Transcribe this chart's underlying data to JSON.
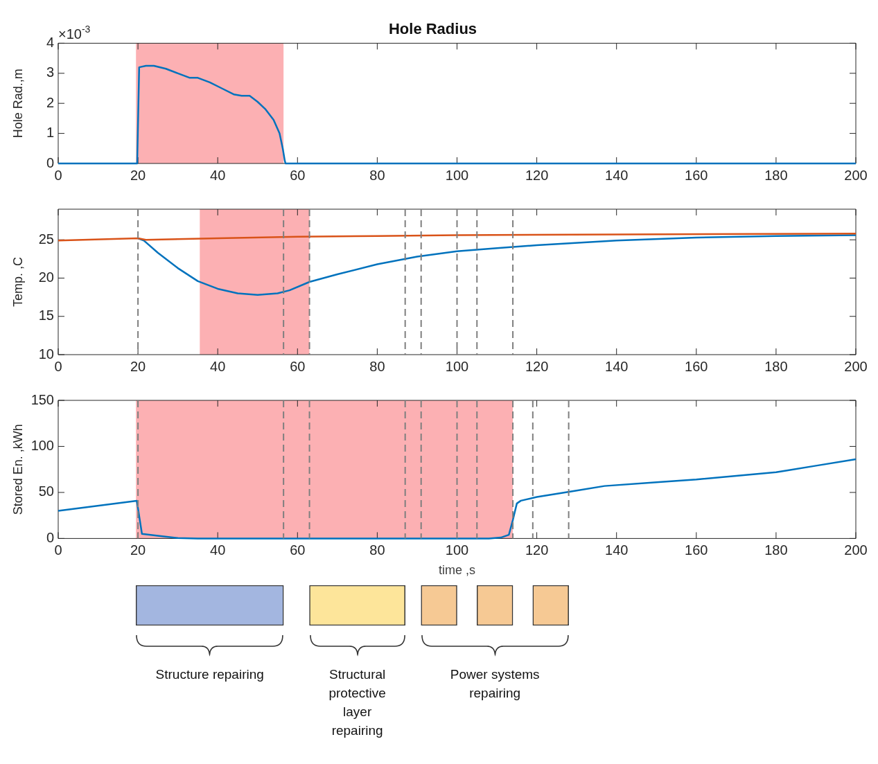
{
  "chart_data": [
    {
      "type": "line",
      "title": "Hole Radius",
      "ylabel": "Hole Rad.,m",
      "annotations": [
        "×10$^{-3}$"
      ],
      "xlim": [
        0,
        200
      ],
      "xticks": [
        0,
        20,
        40,
        60,
        80,
        100,
        120,
        140,
        160,
        180,
        200
      ],
      "ylim": [
        0,
        4
      ],
      "yticks": [
        0,
        1,
        2,
        3,
        4
      ],
      "series": [
        {
          "color": "#0072bd",
          "x": [
            0,
            19.8,
            20.3,
            22,
            24,
            27,
            30,
            33,
            35,
            38,
            41,
            44,
            46,
            48,
            50,
            52,
            54,
            55.5,
            56.3,
            56.8,
            57,
            60,
            100,
            150,
            200
          ],
          "values": [
            0,
            0,
            3.2,
            3.25,
            3.25,
            3.15,
            3.0,
            2.85,
            2.85,
            2.7,
            2.5,
            2.3,
            2.25,
            2.25,
            2.05,
            1.8,
            1.45,
            1.0,
            0.5,
            0.1,
            0,
            0,
            0,
            0,
            0
          ]
        }
      ],
      "bands": [
        {
          "axis": "x",
          "from": 19.5,
          "to": 56.5,
          "color": "#fcb0b3"
        }
      ]
    },
    {
      "type": "line",
      "ylabel": "Temp. ,C",
      "xlim": [
        0,
        200
      ],
      "xticks": [
        0,
        20,
        40,
        60,
        80,
        100,
        120,
        140,
        160,
        180,
        200
      ],
      "ylim": [
        10,
        29
      ],
      "yticks": [
        10,
        15,
        20,
        25
      ],
      "series": [
        {
          "color": "#d95319",
          "x": [
            0,
            20,
            22,
            40,
            60,
            80,
            100,
            140,
            200
          ],
          "values": [
            24.9,
            25.2,
            25.0,
            25.2,
            25.4,
            25.5,
            25.6,
            25.7,
            25.8
          ]
        },
        {
          "color": "#0072bd",
          "x": [
            20,
            21.5,
            25,
            30,
            35,
            40,
            45,
            50,
            55,
            58,
            63,
            70,
            80,
            90,
            100,
            110,
            120,
            140,
            160,
            180,
            200
          ],
          "values": [
            25.2,
            24.9,
            23.3,
            21.3,
            19.6,
            18.6,
            18.0,
            17.8,
            18.0,
            18.4,
            19.5,
            20.5,
            21.8,
            22.8,
            23.5,
            23.9,
            24.3,
            24.9,
            25.3,
            25.5,
            25.6
          ]
        }
      ],
      "bands": [
        {
          "axis": "x",
          "from": 35.5,
          "to": 63,
          "color": "#fcb0b3"
        }
      ],
      "ref_lines": [
        {
          "axis": "x",
          "value": 20,
          "color": "#7f7f7f",
          "line_style": "dashed"
        },
        {
          "axis": "x",
          "value": 56.5,
          "color": "#7f7f7f",
          "line_style": "dashed"
        },
        {
          "axis": "x",
          "value": 63,
          "color": "#7f7f7f",
          "line_style": "dashed"
        },
        {
          "axis": "x",
          "value": 87,
          "color": "#7f7f7f",
          "line_style": "dashed"
        },
        {
          "axis": "x",
          "value": 91,
          "color": "#7f7f7f",
          "line_style": "dashed"
        },
        {
          "axis": "x",
          "value": 100,
          "color": "#7f7f7f",
          "line_style": "dashed"
        },
        {
          "axis": "x",
          "value": 105,
          "color": "#7f7f7f",
          "line_style": "dashed"
        },
        {
          "axis": "x",
          "value": 114,
          "color": "#7f7f7f",
          "line_style": "dashed"
        }
      ]
    },
    {
      "type": "line",
      "ylabel": "Stored En. ,kWh",
      "xlabel": "time ,s",
      "xlim": [
        0,
        200
      ],
      "xticks": [
        0,
        20,
        40,
        60,
        80,
        100,
        120,
        140,
        160,
        180,
        200
      ],
      "ylim": [
        0,
        150
      ],
      "yticks": [
        0,
        50,
        100,
        150
      ],
      "series": [
        {
          "color": "#0072bd",
          "x": [
            0,
            19.7,
            21,
            25,
            30,
            35,
            100,
            108,
            111,
            113,
            114,
            115,
            116,
            120,
            130,
            137,
            150,
            160,
            170,
            180,
            183,
            190,
            200
          ],
          "values": [
            30,
            41,
            5,
            3,
            0.5,
            0,
            0,
            0,
            1,
            4,
            20,
            38,
            41,
            45,
            52,
            57,
            61,
            64,
            68,
            72,
            74,
            79,
            86
          ]
        }
      ],
      "bands": [
        {
          "axis": "x",
          "from": 19.5,
          "to": 114,
          "color": "#fcb0b3"
        }
      ],
      "ref_lines": [
        {
          "axis": "x",
          "value": 20,
          "color": "#7f7f7f",
          "line_style": "dashed"
        },
        {
          "axis": "x",
          "value": 56.5,
          "color": "#7f7f7f",
          "line_style": "dashed"
        },
        {
          "axis": "x",
          "value": 63,
          "color": "#7f7f7f",
          "line_style": "dashed"
        },
        {
          "axis": "x",
          "value": 87,
          "color": "#7f7f7f",
          "line_style": "dashed"
        },
        {
          "axis": "x",
          "value": 91,
          "color": "#7f7f7f",
          "line_style": "dashed"
        },
        {
          "axis": "x",
          "value": 100,
          "color": "#7f7f7f",
          "line_style": "dashed"
        },
        {
          "axis": "x",
          "value": 105,
          "color": "#7f7f7f",
          "line_style": "dashed"
        },
        {
          "axis": "x",
          "value": 114,
          "color": "#7f7f7f",
          "line_style": "dashed"
        },
        {
          "axis": "x",
          "value": 119,
          "color": "#7f7f7f",
          "line_style": "dashed"
        },
        {
          "axis": "x",
          "value": 128,
          "color": "#7f7f7f",
          "line_style": "dashed"
        }
      ]
    },
    {
      "type": "bar",
      "orientation": "horizontal",
      "categories": [
        null
      ],
      "xlim": [
        0,
        200
      ],
      "series": [
        {
          "color": "#a3b6e0",
          "base": [
            19.5
          ],
          "values": [
            37
          ]
        },
        {
          "color": "#fde59a",
          "base": [
            63
          ],
          "values": [
            24
          ]
        },
        {
          "color": "#f6c994",
          "base": [
            91
          ],
          "values": [
            9
          ]
        },
        {
          "color": "#f6c994",
          "base": [
            105
          ],
          "values": [
            9
          ]
        },
        {
          "color": "#f6c994",
          "base": [
            119
          ],
          "values": [
            9
          ]
        }
      ],
      "annotations": [
        "Structure repairing",
        "Structural protective layer repairing",
        "Power systems repairing"
      ]
    }
  ]
}
